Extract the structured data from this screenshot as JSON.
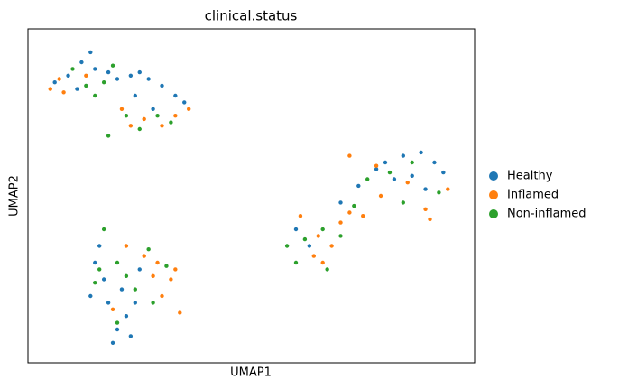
{
  "chart_data": {
    "type": "scatter",
    "title": "clinical.status",
    "x_label": "UMAP1",
    "y_label": "UMAP2",
    "xlim": [
      0,
      100
    ],
    "ylim": [
      0,
      100
    ],
    "legend": "right",
    "series": [
      {
        "name": "Healthy",
        "color": "#1f77b4",
        "values": [
          [
            6,
            84
          ],
          [
            9,
            86
          ],
          [
            12,
            90
          ],
          [
            14,
            93
          ],
          [
            15,
            88
          ],
          [
            11,
            82
          ],
          [
            18,
            87
          ],
          [
            20,
            85
          ],
          [
            23,
            86
          ],
          [
            25,
            87
          ],
          [
            27,
            85
          ],
          [
            30,
            83
          ],
          [
            33,
            80
          ],
          [
            35,
            78
          ],
          [
            24,
            80
          ],
          [
            28,
            76
          ],
          [
            15,
            30
          ],
          [
            17,
            25
          ],
          [
            18,
            18
          ],
          [
            20,
            10
          ],
          [
            19,
            6
          ],
          [
            22,
            14
          ],
          [
            21,
            22
          ],
          [
            24,
            18
          ],
          [
            16,
            35
          ],
          [
            14,
            20
          ],
          [
            25,
            28
          ],
          [
            23,
            8
          ],
          [
            80,
            60
          ],
          [
            84,
            62
          ],
          [
            88,
            63
          ],
          [
            91,
            60
          ],
          [
            93,
            57
          ],
          [
            86,
            56
          ],
          [
            82,
            55
          ],
          [
            89,
            52
          ],
          [
            78,
            58
          ],
          [
            74,
            53
          ],
          [
            70,
            48
          ],
          [
            60,
            40
          ],
          [
            63,
            35
          ]
        ]
      },
      {
        "name": "Inflamed",
        "color": "#ff7f0e",
        "values": [
          [
            5,
            82
          ],
          [
            8,
            81
          ],
          [
            7,
            85
          ],
          [
            13,
            86
          ],
          [
            21,
            76
          ],
          [
            26,
            73
          ],
          [
            30,
            71
          ],
          [
            33,
            74
          ],
          [
            36,
            76
          ],
          [
            23,
            71
          ],
          [
            26,
            32
          ],
          [
            29,
            30
          ],
          [
            32,
            25
          ],
          [
            34,
            15
          ],
          [
            30,
            20
          ],
          [
            28,
            26
          ],
          [
            22,
            35
          ],
          [
            33,
            28
          ],
          [
            19,
            16
          ],
          [
            65,
            38
          ],
          [
            68,
            35
          ],
          [
            64,
            32
          ],
          [
            70,
            42
          ],
          [
            72,
            45
          ],
          [
            75,
            44
          ],
          [
            79,
            50
          ],
          [
            85,
            54
          ],
          [
            94,
            52
          ],
          [
            89,
            46
          ],
          [
            90,
            43
          ],
          [
            78,
            59
          ],
          [
            72,
            62
          ],
          [
            66,
            30
          ],
          [
            61,
            44
          ]
        ]
      },
      {
        "name": "Non-inflamed",
        "color": "#2ca02c",
        "values": [
          [
            10,
            88
          ],
          [
            13,
            83
          ],
          [
            17,
            84
          ],
          [
            19,
            89
          ],
          [
            22,
            74
          ],
          [
            25,
            70
          ],
          [
            29,
            74
          ],
          [
            32,
            72
          ],
          [
            18,
            68
          ],
          [
            15,
            80
          ],
          [
            17,
            40
          ],
          [
            16,
            28
          ],
          [
            20,
            30
          ],
          [
            22,
            26
          ],
          [
            24,
            22
          ],
          [
            27,
            34
          ],
          [
            31,
            29
          ],
          [
            20,
            12
          ],
          [
            15,
            24
          ],
          [
            28,
            18
          ],
          [
            58,
            35
          ],
          [
            62,
            37
          ],
          [
            66,
            40
          ],
          [
            67,
            28
          ],
          [
            70,
            38
          ],
          [
            73,
            47
          ],
          [
            76,
            55
          ],
          [
            81,
            57
          ],
          [
            86,
            60
          ],
          [
            92,
            51
          ],
          [
            60,
            30
          ],
          [
            84,
            48
          ]
        ]
      }
    ]
  }
}
